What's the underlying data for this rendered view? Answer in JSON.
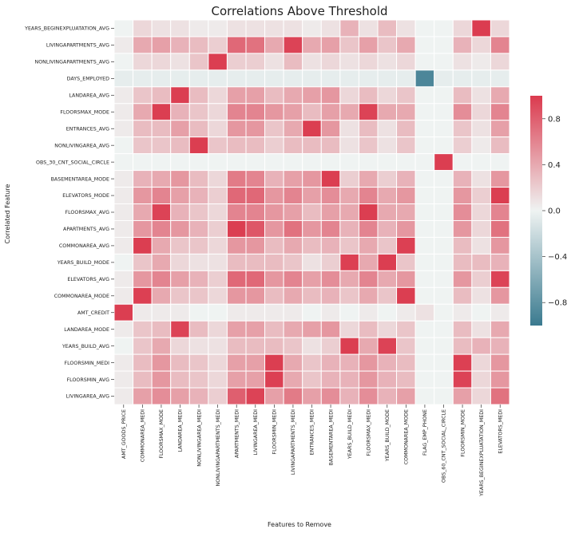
{
  "chart_data": {
    "type": "heatmap",
    "title": "Correlations Above Threshold",
    "xlabel": "Features to Remove",
    "ylabel": "Correlated Feature",
    "x_categories": [
      "AMT_GOODS_PRICE",
      "COMMONAREA_MEDI",
      "FLOORSMAX_MODE",
      "LANDAREA_MEDI",
      "NONLIVINGAREA_MEDI",
      "NONLIVINGAPARTMENTS_MEDI",
      "APARTMENTS_MEDI",
      "LIVINGAREA_MEDI",
      "FLOORSMIN_MEDI",
      "LIVINGAPARTMENTS_MEDI",
      "ENTRANCES_MEDI",
      "BASEMENTAREA_MEDI",
      "YEARS_BUILD_MEDI",
      "FLOORSMAX_MEDI",
      "YEARS_BUILD_MODE",
      "COMMONAREA_MODE",
      "FLAG_EMP_PHONE",
      "OBS_60_CNT_SOCIAL_CIRCLE",
      "FLOORSMIN_MODE",
      "YEARS_BEGINEXPLUATATION_MEDI",
      "ELEVATORS_MEDI"
    ],
    "y_categories": [
      "YEARS_BEGINEXPLUATATION_AVG",
      "LIVINGAPARTMENTS_AVG",
      "NONLIVINGAPARTMENTS_AVG",
      "DAYS_EMPLOYED",
      "LANDAREA_AVG",
      "FLOORSMAX_MODE",
      "ENTRANCES_AVG",
      "NONLIVINGAREA_AVG",
      "OBS_30_CNT_SOCIAL_CIRCLE",
      "BASEMENTAREA_MODE",
      "ELEVATORS_MODE",
      "FLOORSMAX_AVG",
      "APARTMENTS_AVG",
      "COMMONAREA_AVG",
      "YEARS_BUILD_MODE",
      "ELEVATORS_AVG",
      "COMMONAREA_MODE",
      "AMT_CREDIT",
      "LANDAREA_MODE",
      "YEARS_BUILD_AVG",
      "FLOORSMIN_MEDI",
      "FLOORSMIN_AVG",
      "LIVINGAREA_AVG"
    ],
    "values": [
      [
        0.0,
        0.15,
        0.1,
        0.1,
        0.05,
        0.05,
        0.1,
        0.1,
        0.1,
        0.1,
        0.05,
        0.1,
        0.35,
        0.1,
        0.3,
        0.1,
        0.0,
        0.0,
        0.15,
        0.99,
        0.15
      ],
      [
        0.05,
        0.4,
        0.45,
        0.35,
        0.3,
        0.2,
        0.75,
        0.7,
        0.4,
        0.95,
        0.4,
        0.45,
        0.25,
        0.45,
        0.25,
        0.4,
        0.0,
        0.0,
        0.35,
        0.15,
        0.6
      ],
      [
        0.0,
        0.15,
        0.15,
        0.1,
        0.25,
        0.98,
        0.2,
        0.2,
        0.1,
        0.3,
        0.1,
        0.15,
        0.1,
        0.15,
        0.1,
        0.15,
        0.0,
        0.0,
        0.1,
        0.05,
        0.15
      ],
      [
        -0.05,
        -0.05,
        -0.05,
        -0.05,
        -0.05,
        -0.05,
        -0.05,
        -0.05,
        -0.05,
        -0.05,
        -0.05,
        -0.05,
        -0.05,
        -0.05,
        -0.05,
        -0.05,
        -0.9,
        -0.05,
        -0.05,
        -0.05,
        -0.05
      ],
      [
        0.05,
        0.25,
        0.3,
        0.98,
        0.3,
        0.15,
        0.45,
        0.45,
        0.3,
        0.4,
        0.45,
        0.5,
        0.15,
        0.3,
        0.15,
        0.25,
        0.0,
        0.0,
        0.3,
        0.1,
        0.4
      ],
      [
        0.05,
        0.4,
        0.98,
        0.35,
        0.25,
        0.15,
        0.6,
        0.6,
        0.5,
        0.45,
        0.3,
        0.45,
        0.4,
        0.95,
        0.4,
        0.4,
        0.0,
        0.0,
        0.55,
        0.15,
        0.6
      ],
      [
        0.05,
        0.3,
        0.3,
        0.45,
        0.3,
        0.15,
        0.5,
        0.5,
        0.25,
        0.4,
        0.98,
        0.5,
        0.1,
        0.3,
        0.1,
        0.3,
        0.0,
        0.0,
        0.25,
        0.1,
        0.45
      ],
      [
        0.0,
        0.25,
        0.25,
        0.3,
        0.98,
        0.25,
        0.3,
        0.3,
        0.2,
        0.3,
        0.3,
        0.3,
        0.1,
        0.25,
        0.1,
        0.25,
        0.0,
        0.0,
        0.2,
        0.05,
        0.3
      ],
      [
        0.0,
        0.0,
        0.0,
        0.0,
        0.0,
        0.0,
        0.0,
        0.0,
        0.0,
        0.0,
        0.0,
        0.0,
        0.0,
        0.0,
        0.0,
        0.0,
        0.0,
        0.98,
        0.0,
        0.0,
        0.0
      ],
      [
        0.05,
        0.35,
        0.4,
        0.5,
        0.3,
        0.15,
        0.65,
        0.6,
        0.35,
        0.45,
        0.5,
        0.98,
        0.2,
        0.4,
        0.2,
        0.35,
        0.0,
        0.0,
        0.35,
        0.1,
        0.5
      ],
      [
        0.05,
        0.5,
        0.6,
        0.45,
        0.35,
        0.2,
        0.75,
        0.75,
        0.5,
        0.6,
        0.45,
        0.55,
        0.4,
        0.6,
        0.4,
        0.5,
        0.0,
        0.0,
        0.5,
        0.2,
        0.98
      ],
      [
        0.05,
        0.4,
        0.95,
        0.35,
        0.25,
        0.15,
        0.6,
        0.6,
        0.5,
        0.45,
        0.3,
        0.45,
        0.4,
        0.98,
        0.4,
        0.4,
        0.0,
        0.0,
        0.55,
        0.15,
        0.6
      ],
      [
        0.05,
        0.5,
        0.6,
        0.5,
        0.35,
        0.2,
        0.98,
        0.85,
        0.5,
        0.7,
        0.5,
        0.6,
        0.35,
        0.6,
        0.35,
        0.5,
        0.0,
        0.0,
        0.5,
        0.15,
        0.7
      ],
      [
        0.05,
        0.98,
        0.4,
        0.25,
        0.25,
        0.15,
        0.5,
        0.5,
        0.3,
        0.4,
        0.3,
        0.35,
        0.25,
        0.4,
        0.25,
        0.97,
        0.0,
        0.0,
        0.3,
        0.1,
        0.5
      ],
      [
        0.0,
        0.25,
        0.4,
        0.15,
        0.1,
        0.1,
        0.3,
        0.3,
        0.3,
        0.25,
        0.1,
        0.2,
        0.97,
        0.4,
        0.98,
        0.25,
        0.0,
        0.0,
        0.3,
        0.3,
        0.35
      ],
      [
        0.05,
        0.5,
        0.6,
        0.45,
        0.35,
        0.2,
        0.75,
        0.75,
        0.5,
        0.6,
        0.45,
        0.55,
        0.4,
        0.6,
        0.4,
        0.5,
        0.0,
        0.0,
        0.5,
        0.2,
        0.95
      ],
      [
        0.05,
        0.97,
        0.4,
        0.25,
        0.25,
        0.15,
        0.5,
        0.5,
        0.3,
        0.4,
        0.3,
        0.35,
        0.25,
        0.4,
        0.25,
        0.98,
        0.0,
        0.0,
        0.3,
        0.1,
        0.5
      ],
      [
        0.98,
        0.05,
        0.05,
        0.05,
        0.0,
        0.0,
        0.05,
        0.05,
        0.05,
        0.05,
        0.0,
        0.05,
        0.0,
        0.05,
        0.0,
        0.05,
        0.1,
        0.0,
        0.05,
        0.0,
        0.05
      ],
      [
        0.05,
        0.25,
        0.3,
        0.95,
        0.3,
        0.15,
        0.45,
        0.45,
        0.3,
        0.4,
        0.45,
        0.5,
        0.15,
        0.3,
        0.15,
        0.25,
        0.0,
        0.0,
        0.3,
        0.1,
        0.4
      ],
      [
        0.0,
        0.25,
        0.4,
        0.15,
        0.1,
        0.1,
        0.3,
        0.3,
        0.3,
        0.25,
        0.1,
        0.2,
        0.98,
        0.4,
        0.95,
        0.25,
        0.0,
        0.0,
        0.3,
        0.35,
        0.35
      ],
      [
        0.05,
        0.3,
        0.5,
        0.3,
        0.25,
        0.15,
        0.45,
        0.45,
        0.98,
        0.4,
        0.25,
        0.35,
        0.35,
        0.5,
        0.35,
        0.3,
        0.0,
        0.0,
        0.97,
        0.15,
        0.5
      ],
      [
        0.05,
        0.3,
        0.5,
        0.3,
        0.25,
        0.15,
        0.45,
        0.45,
        0.97,
        0.4,
        0.25,
        0.35,
        0.35,
        0.5,
        0.35,
        0.3,
        0.0,
        0.0,
        0.95,
        0.15,
        0.5
      ],
      [
        0.05,
        0.45,
        0.55,
        0.45,
        0.35,
        0.2,
        0.8,
        0.95,
        0.45,
        0.65,
        0.45,
        0.55,
        0.35,
        0.55,
        0.35,
        0.45,
        0.0,
        0.0,
        0.45,
        0.15,
        0.7
      ]
    ],
    "vmin": -1,
    "vmax": 1,
    "colorbar_ticks": [
      0.8,
      0.4,
      0.0,
      -0.4,
      -0.8
    ],
    "colorbar_tick_labels": [
      "0.8",
      "0.4",
      "0.0",
      "−0.4",
      "−0.8"
    ],
    "colors": {
      "negative": "#3a7a8f",
      "neutral": "#eff3f2",
      "positive": "#db3a4e"
    },
    "grid": true
  }
}
